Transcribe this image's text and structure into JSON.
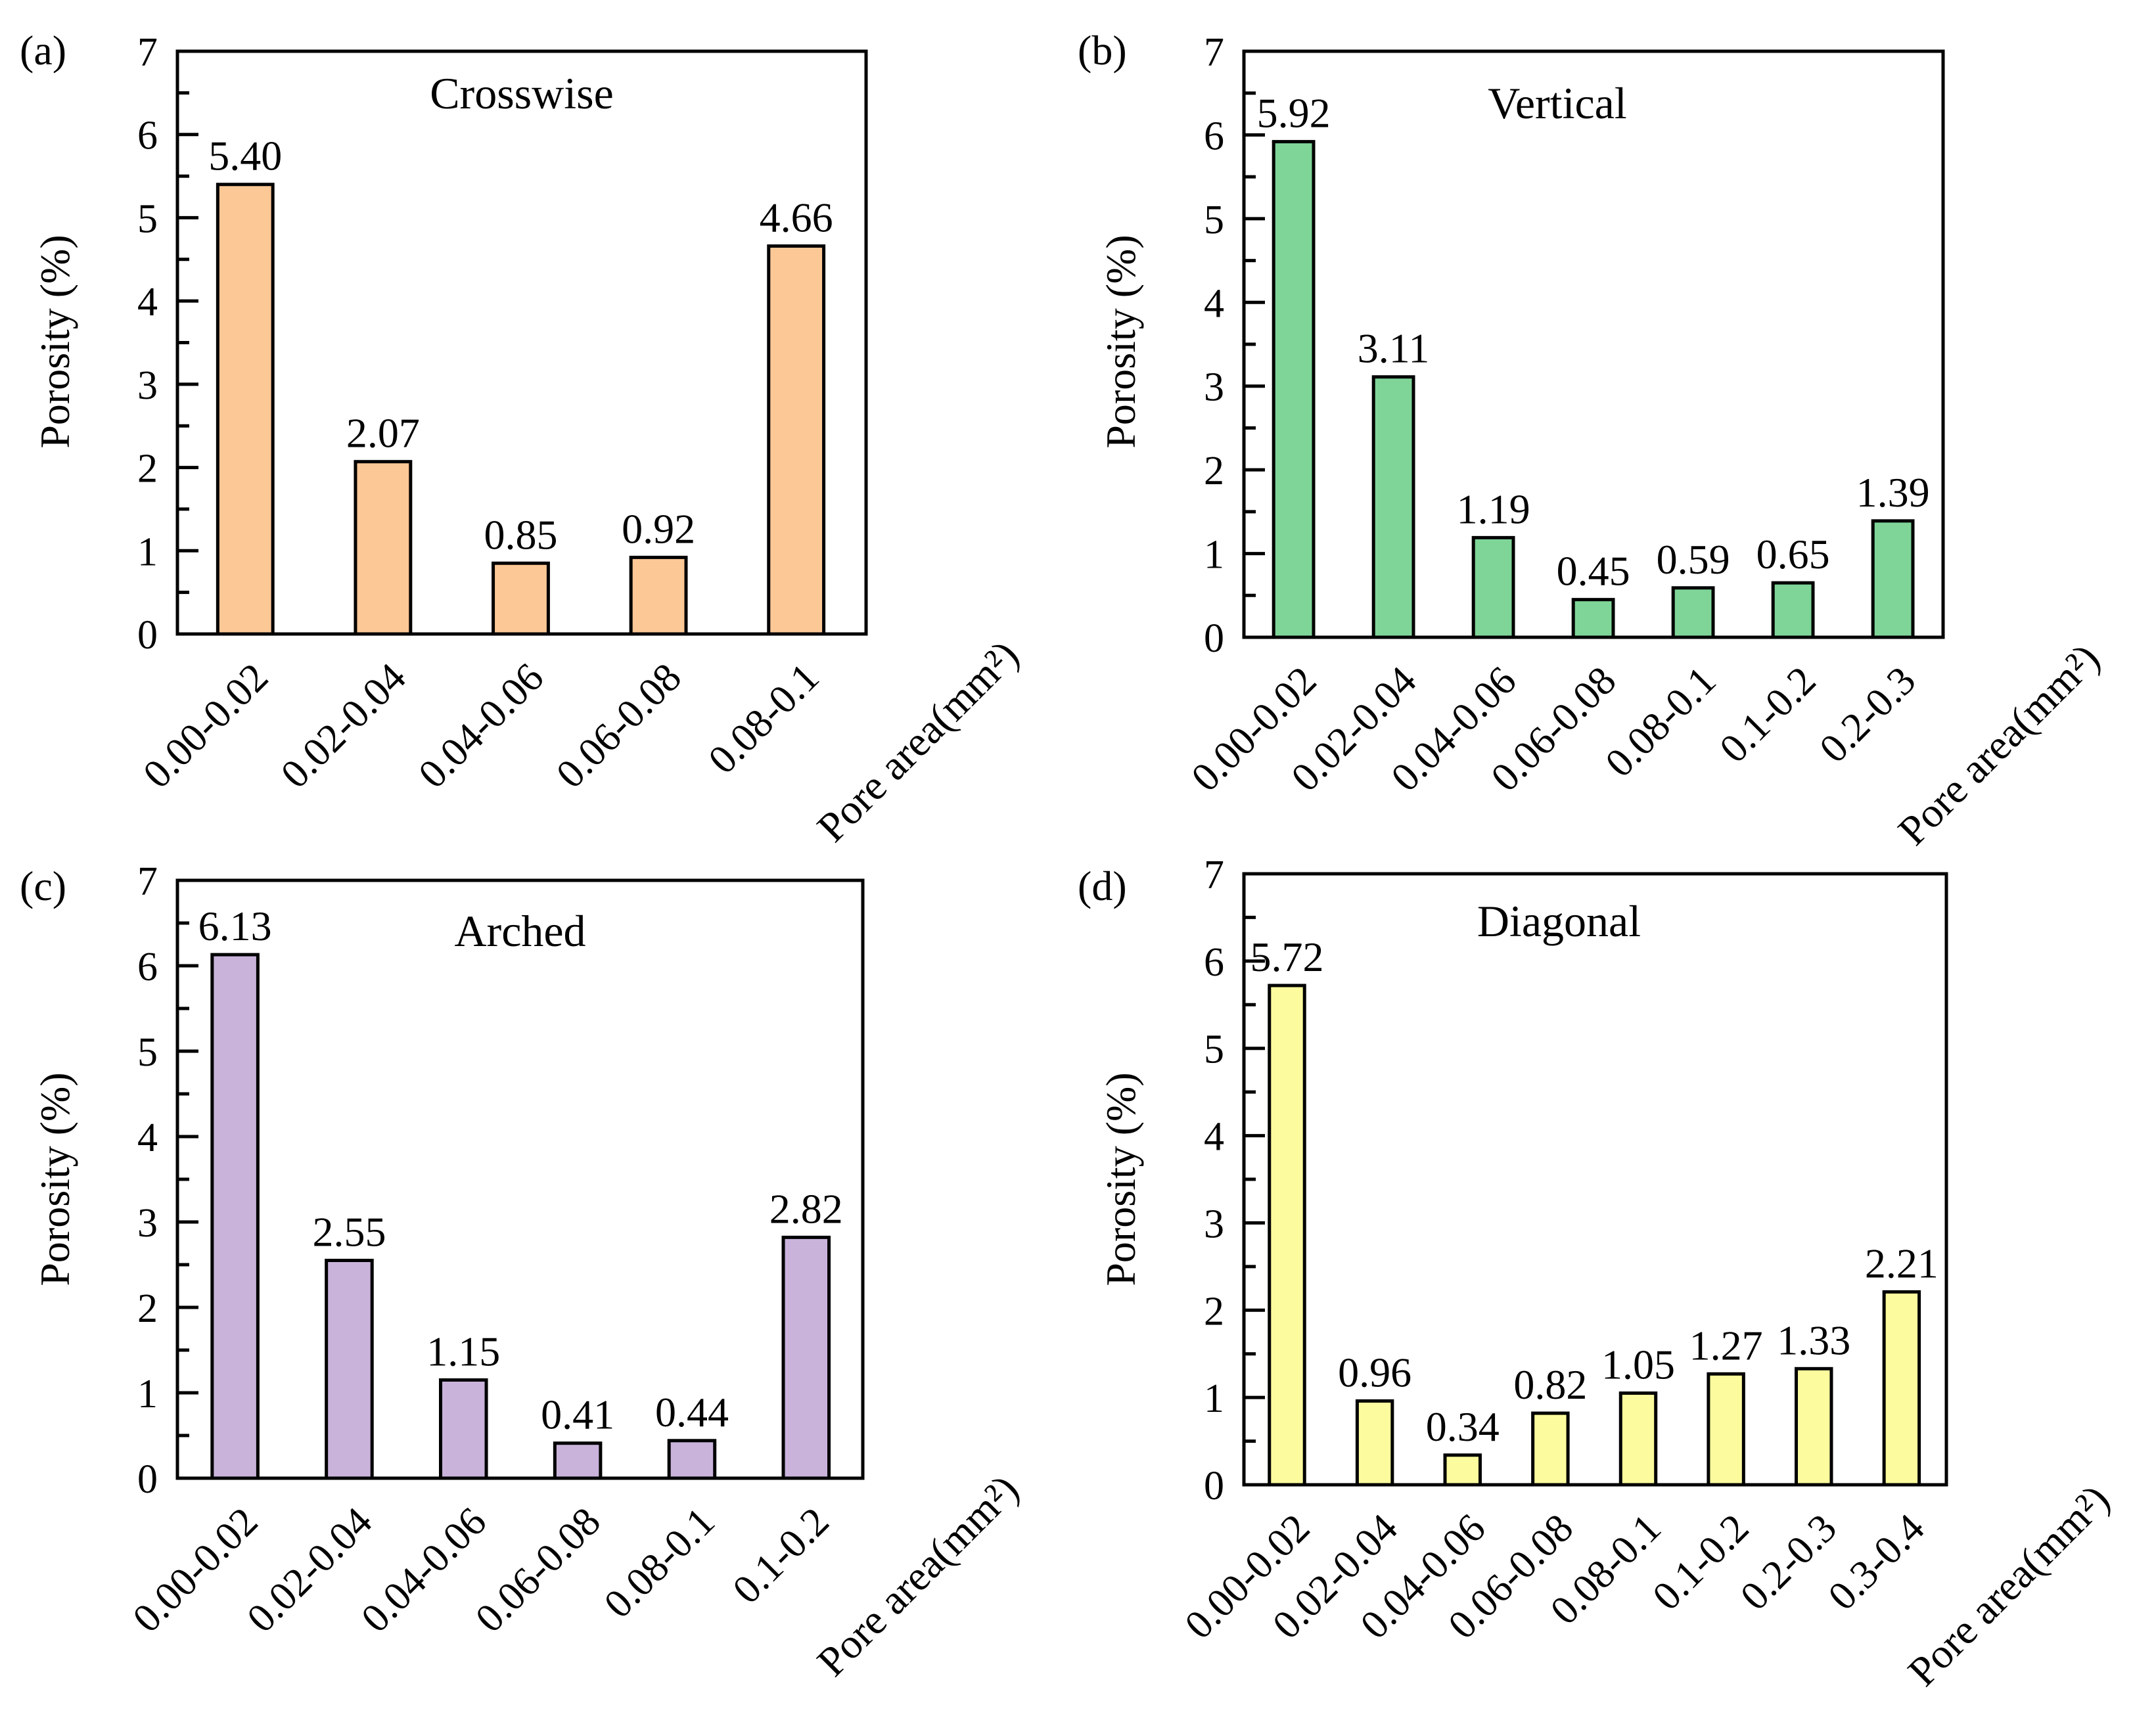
{
  "chart_data": [
    {
      "type": "bar",
      "panel_label": "(a)",
      "title": "Crosswise",
      "ylabel": "Porosity (%)",
      "xlabel": "Pore area(mm²)",
      "ylim": [
        0,
        7
      ],
      "y_ticks": [
        "0",
        "1",
        "2",
        "3",
        "4",
        "5",
        "6",
        "7"
      ],
      "categories": [
        "0.00-0.02",
        "0.02-0.04",
        "0.04-0.06",
        "0.06-0.08",
        "0.08-0.1"
      ],
      "values": [
        5.4,
        2.07,
        0.85,
        0.92,
        4.66
      ],
      "value_labels": [
        "5.40",
        "2.07",
        "0.85",
        "0.92",
        "4.66"
      ],
      "bar_color": "#fcc896"
    },
    {
      "type": "bar",
      "panel_label": "(b)",
      "title": "Vertical",
      "ylabel": "Porosity (%)",
      "xlabel": "Pore area(mm²)",
      "ylim": [
        0,
        7
      ],
      "y_ticks": [
        "0",
        "1",
        "2",
        "3",
        "4",
        "5",
        "6",
        "7"
      ],
      "categories": [
        "0.00-0.02",
        "0.02-0.04",
        "0.04-0.06",
        "0.06-0.08",
        "0.08-0.1",
        "0.1-0.2",
        "0.2-0.3"
      ],
      "values": [
        5.92,
        3.11,
        1.19,
        0.45,
        0.59,
        0.65,
        1.39
      ],
      "value_labels": [
        "5.92",
        "3.11",
        "1.19",
        "0.45",
        "0.59",
        "0.65",
        "1.39"
      ],
      "bar_color": "#7fd598"
    },
    {
      "type": "bar",
      "panel_label": "(c)",
      "title": "Arched",
      "ylabel": "Porosity (%)",
      "xlabel": "Pore area(mm²)",
      "ylim": [
        0,
        7
      ],
      "y_ticks": [
        "0",
        "1",
        "2",
        "3",
        "4",
        "5",
        "6",
        "7"
      ],
      "categories": [
        "0.00-0.02",
        "0.02-0.04",
        "0.04-0.06",
        "0.06-0.08",
        "0.08-0.1",
        "0.1-0.2"
      ],
      "values": [
        6.13,
        2.55,
        1.15,
        0.41,
        0.44,
        2.82
      ],
      "value_labels": [
        "6.13",
        "2.55",
        "1.15",
        "0.41",
        "0.44",
        "2.82"
      ],
      "bar_color": "#c9b3db"
    },
    {
      "type": "bar",
      "panel_label": "(d)",
      "title": "Diagonal",
      "ylabel": "Porosity (%)",
      "xlabel": "Pore area(mm²)",
      "ylim": [
        0,
        7
      ],
      "y_ticks": [
        "0",
        "1",
        "2",
        "3",
        "4",
        "5",
        "6",
        "7"
      ],
      "categories": [
        "0.00-0.02",
        "0.02-0.04",
        "0.04-0.06",
        "0.06-0.08",
        "0.08-0.1",
        "0.1-0.2",
        "0.2-0.3",
        "0.3-0.4"
      ],
      "values": [
        5.72,
        0.96,
        0.34,
        0.82,
        1.05,
        1.27,
        1.33,
        2.21
      ],
      "value_labels": [
        "5.72",
        "0.96",
        "0.34",
        "0.82",
        "1.05",
        "1.27",
        "1.33",
        "2.21"
      ],
      "bar_color": "#fcfc9e"
    }
  ]
}
